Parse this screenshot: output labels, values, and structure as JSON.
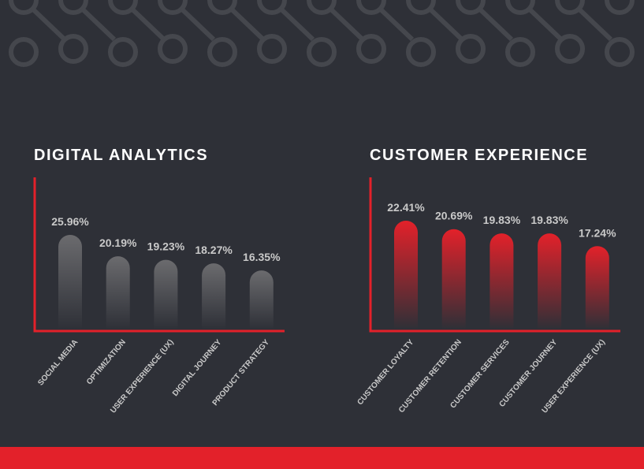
{
  "chart_data": [
    {
      "type": "bar",
      "title": "DIGITAL ANALYTICS",
      "categories": [
        "SOCIAL MEDIA",
        "OPTIMIZATION",
        "USER EXPERIENCE (UX)",
        "DIGITAL JOURNEY",
        "PRODUCT STRATEGY"
      ],
      "values": [
        25.96,
        20.19,
        19.23,
        18.27,
        16.35
      ],
      "value_labels": [
        "25.96%",
        "20.19%",
        "19.23%",
        "18.27%",
        "16.35%"
      ],
      "color": "#6b6b6e"
    },
    {
      "type": "bar",
      "title": "CUSTOMER EXPERIENCE",
      "categories": [
        "CUSTOMER LOYALTY",
        "CUSTOMER RETENTION",
        "CUSTOMER SERVICES",
        "CUSTOMER JOURNEY",
        "USER EXPERIENCE (UX)"
      ],
      "values": [
        22.41,
        20.69,
        19.83,
        19.83,
        17.24
      ],
      "value_labels": [
        "22.41%",
        "20.69%",
        "19.83%",
        "19.83%",
        "17.24%"
      ],
      "color": "#e3212a"
    }
  ]
}
